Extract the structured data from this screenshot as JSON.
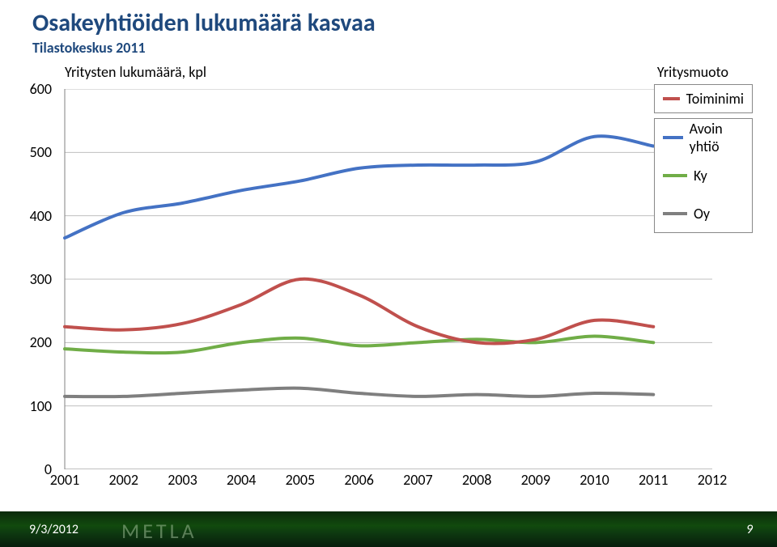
{
  "title": "Osakeyhtiöiden lukumäärä kasvaa",
  "subtitle": "Tilastokeskus 2011",
  "ylabel": "Yritysten lukumäärä, kpl",
  "legend_title": "Yritysmuoto",
  "chart": {
    "type": "line",
    "background_color": "#ffffff",
    "grid_color": "#bfbfbf",
    "grid_width": 1,
    "line_width": 4,
    "xlim": [
      2001,
      2012
    ],
    "ylim": [
      0,
      600
    ],
    "ytick_step": 100,
    "xticks": [
      2001,
      2002,
      2003,
      2004,
      2005,
      2006,
      2007,
      2008,
      2009,
      2010,
      2011,
      2012
    ],
    "yticks": [
      0,
      100,
      200,
      300,
      400,
      500,
      600
    ],
    "years": [
      2001,
      2002,
      2003,
      2004,
      2005,
      2006,
      2007,
      2008,
      2009,
      2010,
      2011
    ],
    "series": [
      {
        "name": "Toiminimi",
        "label": "Toiminimi",
        "color": "#c0504d",
        "values": [
          225,
          220,
          230,
          260,
          300,
          275,
          225,
          200,
          205,
          235,
          225
        ]
      },
      {
        "name": "Avoin yhtiö",
        "label": "Avoin yhtiö",
        "color": "#4472c4",
        "values": [
          365,
          405,
          420,
          440,
          455,
          475,
          480,
          480,
          485,
          525,
          510
        ]
      },
      {
        "name": "Ky",
        "label": "Ky",
        "color": "#70ad47",
        "values": [
          190,
          185,
          185,
          200,
          207,
          195,
          200,
          205,
          200,
          210,
          200
        ]
      },
      {
        "name": "Oy",
        "label": "Oy",
        "color": "#7f7f7f",
        "values": [
          115,
          115,
          120,
          125,
          128,
          120,
          115,
          118,
          115,
          120,
          118
        ]
      }
    ],
    "legend_order": [
      "Toiminimi",
      "Avoin yhtiö",
      "Ky",
      "Oy"
    ],
    "label_fontsize": 18,
    "title_fontsize": 30
  },
  "footer": {
    "date": "9/3/2012",
    "page": "9",
    "logo": "METLA"
  }
}
